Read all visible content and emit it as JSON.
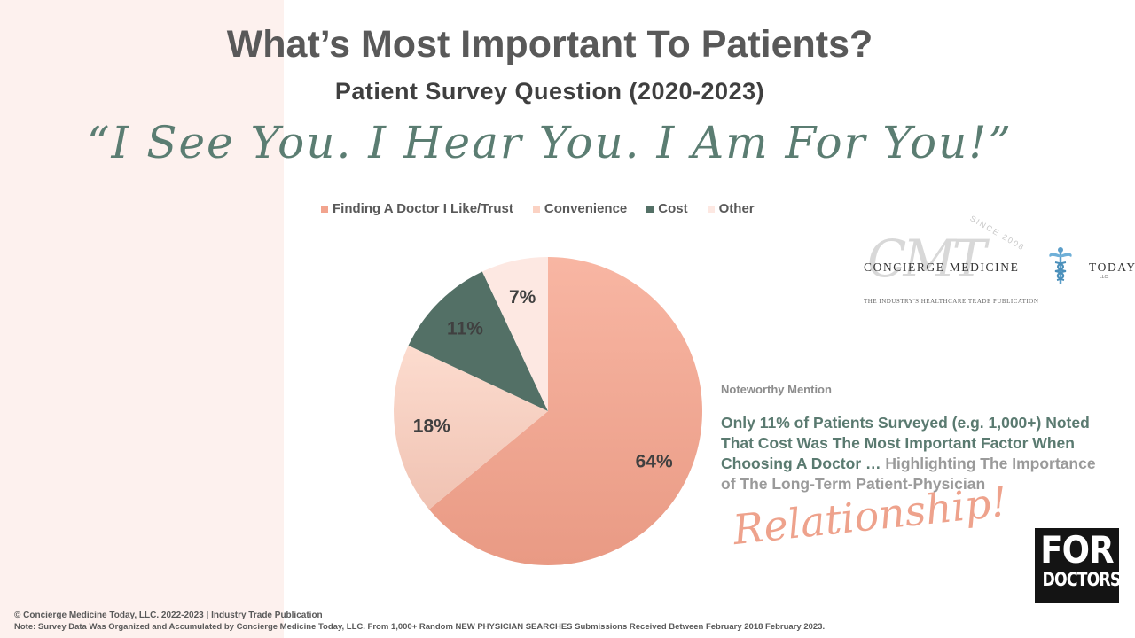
{
  "header": {
    "title": "What’s Most Important To Patients?",
    "subtitle": "Patient Survey Question (2020-2023)",
    "quote": "“I See You. I Hear You. I Am For You!”"
  },
  "chart_data": {
    "type": "pie",
    "labels": [
      "Finding A Doctor I Like/Trust",
      "Convenience",
      "Cost",
      "Other"
    ],
    "values": [
      64,
      18,
      11,
      7
    ],
    "value_labels": [
      "64%",
      "18%",
      "11%",
      "7%"
    ],
    "colors": [
      "#f2a48e",
      "#fbd2c3",
      "#537066",
      "#fde8e2"
    ],
    "label_colors": [
      "#404040",
      "#404040",
      "#404040",
      "#404040"
    ],
    "legend_position": "top"
  },
  "logo": {
    "monogram": "CMT",
    "since": "SINCE 2008",
    "name_left": "CONCIERGE MEDICINE",
    "name_right": "TODAY",
    "llc": "LLC.",
    "tagline": "THE INDUSTRY'S HEALTHCARE TRADE PUBLICATION"
  },
  "note": {
    "heading": "Noteworthy Mention",
    "body_green": "Only 11% of Patients Surveyed (e.g. 1,000+) Noted That Cost Was The Most Important Factor When Choosing A Doctor …",
    "body_grey": " Highlighting The Importance of The Long-Term Patient-Physician",
    "script_word": "Relationship!"
  },
  "badge": {
    "line1": "FOR",
    "line2": "DOCTORS"
  },
  "footer": {
    "line1": "© Concierge Medicine Today, LLC. 2022-2023 | Industry Trade Publication",
    "line2": "Note: Survey Data Was Organized and Accumulated by Concierge Medicine Today, LLC. From 1,000+ Random NEW PHYSICIAN SEARCHES Submissions Received Between February 2018 February 2023."
  }
}
